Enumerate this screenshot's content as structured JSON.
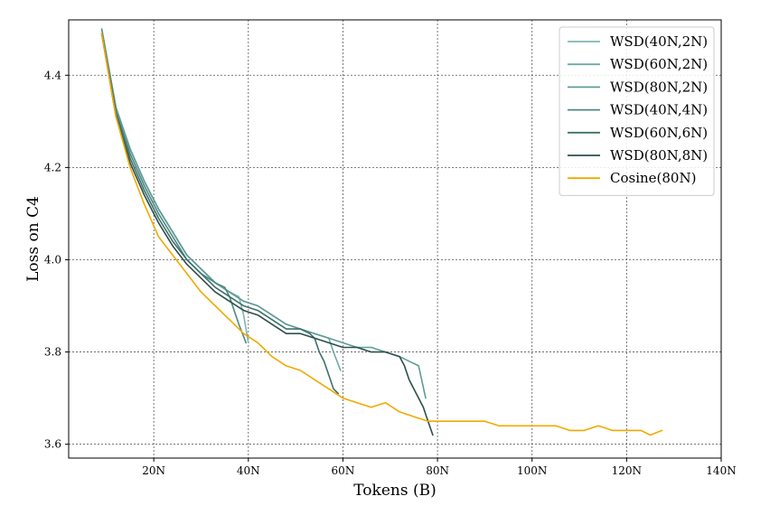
{
  "chart_data": {
    "type": "line",
    "title": "",
    "xlabel": "Tokens (B)",
    "ylabel": "Loss on C4",
    "xlim": [
      2,
      140
    ],
    "ylim": [
      3.57,
      4.52
    ],
    "x_ticks": [
      20,
      40,
      60,
      80,
      100,
      120,
      140
    ],
    "x_tick_labels": [
      "20N",
      "40N",
      "60N",
      "80N",
      "100N",
      "120N",
      "140N"
    ],
    "y_ticks": [
      3.6,
      3.8,
      4.0,
      4.2,
      4.4
    ],
    "y_tick_labels": [
      "3.6",
      "3.8",
      "4.0",
      "4.2",
      "4.4"
    ],
    "grid": true,
    "legend_position": "top-right",
    "series": [
      {
        "name": "WSD(40N,2N)",
        "color": "#7fb8b2",
        "x": [
          9,
          12,
          15,
          18,
          21,
          24,
          27,
          30,
          33,
          36,
          38,
          39,
          40
        ],
        "y": [
          4.5,
          4.33,
          4.24,
          4.17,
          4.11,
          4.06,
          4.01,
          3.98,
          3.95,
          3.93,
          3.92,
          3.88,
          3.82
        ]
      },
      {
        "name": "WSD(60N,2N)",
        "color": "#6faaa5",
        "x": [
          9,
          12,
          15,
          18,
          21,
          24,
          27,
          30,
          33,
          36,
          39,
          42,
          45,
          48,
          51,
          54,
          57,
          58,
          59.5
        ],
        "y": [
          4.5,
          4.33,
          4.24,
          4.17,
          4.11,
          4.06,
          4.01,
          3.98,
          3.95,
          3.93,
          3.91,
          3.9,
          3.88,
          3.86,
          3.85,
          3.84,
          3.83,
          3.8,
          3.76
        ]
      },
      {
        "name": "WSD(80N,2N)",
        "color": "#5f9c96",
        "x": [
          9,
          12,
          15,
          18,
          21,
          24,
          27,
          30,
          33,
          36,
          39,
          42,
          45,
          48,
          51,
          54,
          57,
          60,
          63,
          66,
          69,
          72,
          74,
          76,
          77.5
        ],
        "y": [
          4.5,
          4.33,
          4.24,
          4.17,
          4.11,
          4.06,
          4.01,
          3.98,
          3.95,
          3.93,
          3.91,
          3.9,
          3.88,
          3.86,
          3.85,
          3.84,
          3.83,
          3.82,
          3.81,
          3.81,
          3.8,
          3.79,
          3.78,
          3.77,
          3.7
        ]
      },
      {
        "name": "WSD(40N,4N)",
        "color": "#4f8884",
        "x": [
          9,
          12,
          15,
          18,
          21,
          24,
          27,
          30,
          33,
          35,
          36,
          37,
          38,
          39.5
        ],
        "y": [
          4.49,
          4.32,
          4.23,
          4.16,
          4.1,
          4.05,
          4.0,
          3.97,
          3.95,
          3.94,
          3.92,
          3.89,
          3.86,
          3.82
        ]
      },
      {
        "name": "WSD(60N,6N)",
        "color": "#3e706c",
        "x": [
          9,
          12,
          15,
          18,
          21,
          24,
          27,
          30,
          33,
          36,
          39,
          42,
          45,
          48,
          51,
          53,
          54,
          55,
          56,
          57,
          58,
          59
        ],
        "y": [
          4.49,
          4.32,
          4.22,
          4.15,
          4.09,
          4.04,
          4.0,
          3.97,
          3.94,
          3.92,
          3.9,
          3.89,
          3.87,
          3.85,
          3.85,
          3.84,
          3.83,
          3.8,
          3.78,
          3.75,
          3.72,
          3.71
        ]
      },
      {
        "name": "WSD(80N,8N)",
        "color": "#2c4f4b",
        "x": [
          9,
          12,
          15,
          18,
          21,
          24,
          27,
          30,
          33,
          36,
          39,
          42,
          45,
          48,
          51,
          54,
          57,
          60,
          63,
          66,
          69,
          72,
          73,
          74,
          75,
          76,
          77,
          78,
          79
        ],
        "y": [
          4.49,
          4.31,
          4.21,
          4.14,
          4.08,
          4.03,
          3.99,
          3.96,
          3.93,
          3.91,
          3.89,
          3.88,
          3.86,
          3.84,
          3.84,
          3.83,
          3.82,
          3.81,
          3.81,
          3.8,
          3.8,
          3.79,
          3.77,
          3.74,
          3.72,
          3.7,
          3.68,
          3.65,
          3.62
        ]
      },
      {
        "name": "Cosine(80N)",
        "color": "#f2a900",
        "x": [
          9,
          12,
          15,
          18,
          21,
          24,
          27,
          30,
          33,
          36,
          39,
          42,
          45,
          48,
          51,
          54,
          57,
          60,
          63,
          66,
          69,
          72,
          75,
          78,
          81,
          84,
          87,
          90,
          93,
          96,
          99,
          102,
          105,
          108,
          111,
          114,
          117,
          120,
          123,
          125,
          127.5
        ],
        "y": [
          4.49,
          4.31,
          4.2,
          4.12,
          4.05,
          4.01,
          3.97,
          3.93,
          3.9,
          3.87,
          3.84,
          3.82,
          3.79,
          3.77,
          3.76,
          3.74,
          3.72,
          3.7,
          3.69,
          3.68,
          3.69,
          3.67,
          3.66,
          3.65,
          3.65,
          3.65,
          3.65,
          3.65,
          3.64,
          3.64,
          3.64,
          3.64,
          3.64,
          3.63,
          3.63,
          3.64,
          3.63,
          3.63,
          3.63,
          3.62,
          3.63
        ]
      }
    ]
  }
}
